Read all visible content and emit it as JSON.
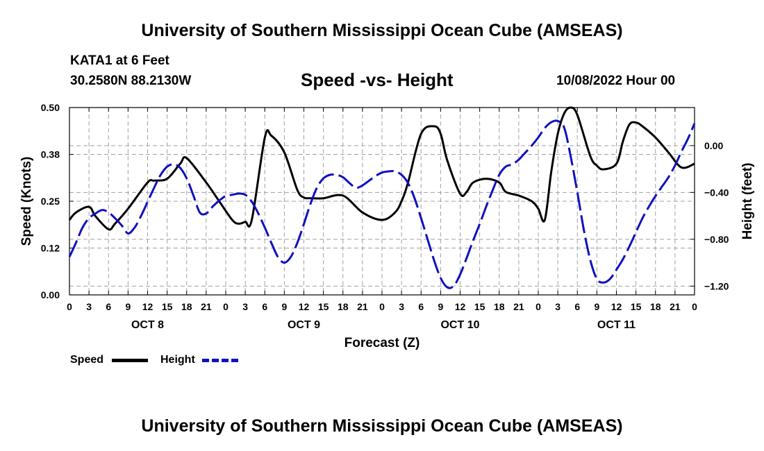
{
  "header": {
    "title_top": "University of Southern Mississippi Ocean Cube (AMSEAS)",
    "station": "KATA1 at 6 Feet",
    "coords": "30.2580N  88.2130W",
    "plot_title": "Speed -vs- Height",
    "datetime": "10/08/2022 Hour 00",
    "title_bottom": "University of Southern Mississippi Ocean Cube (AMSEAS)"
  },
  "legend": {
    "speed_label": "Speed",
    "height_label": "Height"
  },
  "colors": {
    "speed": "#000000",
    "height": "#1010c0",
    "grid": "#a0a0a0"
  },
  "chart_data": {
    "type": "line",
    "title": "Speed -vs- Height",
    "xlabel": "Forecast (Z)",
    "ylabel_left": "Speed (Knots)",
    "ylabel_right": "Height (feet)",
    "x_unit": "hours from 10/08/2022 00Z",
    "xlim": [
      0,
      96
    ],
    "ylim_left": [
      0,
      0.5
    ],
    "ylim_right": [
      -1.275,
      0.325
    ],
    "grid": true,
    "x_ticks": [
      0,
      3,
      6,
      9,
      12,
      15,
      18,
      21,
      24,
      27,
      30,
      33,
      36,
      39,
      42,
      45,
      48,
      51,
      54,
      57,
      60,
      63,
      66,
      69,
      72,
      75,
      78,
      81,
      84,
      87,
      90,
      93,
      96
    ],
    "x_tick_labels": [
      "0",
      "3",
      "6",
      "9",
      "12",
      "15",
      "18",
      "21",
      "0",
      "3",
      "6",
      "9",
      "12",
      "15",
      "18",
      "21",
      "0",
      "3",
      "6",
      "9",
      "12",
      "15",
      "18",
      "21",
      "0",
      "3",
      "6",
      "9",
      "12",
      "15",
      "18",
      "21",
      "0"
    ],
    "day_labels": [
      {
        "label": "OCT 8",
        "x": 12
      },
      {
        "label": "OCT 9",
        "x": 36
      },
      {
        "label": "OCT 10",
        "x": 60
      },
      {
        "label": "OCT 11",
        "x": 84
      }
    ],
    "left_ticks": [
      {
        "v": 0.0,
        "label": "0.00"
      },
      {
        "v": 0.125,
        "label": "0.12"
      },
      {
        "v": 0.25,
        "label": "0.25"
      },
      {
        "v": 0.375,
        "label": "0.38"
      },
      {
        "v": 0.5,
        "label": "0.50"
      }
    ],
    "right_ticks": [
      {
        "v": -1.2,
        "label": "−1.20"
      },
      {
        "v": -0.8,
        "label": "−0.80"
      },
      {
        "v": -0.4,
        "label": "−0.40"
      },
      {
        "v": 0.0,
        "label": "0.00"
      }
    ],
    "series": [
      {
        "name": "Speed",
        "axis": "left",
        "style": "solid",
        "x": [
          0,
          1,
          3,
          4,
          6,
          7,
          9,
          12,
          13,
          15,
          17,
          18,
          21,
          23,
          25,
          26,
          27,
          28,
          30,
          31,
          33,
          35,
          36,
          37,
          39,
          42,
          45,
          48,
          50,
          51,
          52,
          54,
          56,
          57,
          58,
          60,
          61,
          62,
          64,
          66,
          67,
          69,
          71,
          72,
          73,
          74,
          75,
          76,
          77,
          78,
          80,
          81,
          82,
          84,
          85,
          86,
          87,
          88,
          90,
          92,
          94,
          96
        ],
        "values": [
          0.2,
          0.22,
          0.235,
          0.21,
          0.175,
          0.19,
          0.23,
          0.3,
          0.305,
          0.31,
          0.35,
          0.365,
          0.3,
          0.25,
          0.2,
          0.19,
          0.195,
          0.2,
          0.42,
          0.425,
          0.38,
          0.28,
          0.26,
          0.258,
          0.258,
          0.265,
          0.22,
          0.2,
          0.22,
          0.25,
          0.3,
          0.43,
          0.45,
          0.43,
          0.36,
          0.27,
          0.275,
          0.3,
          0.31,
          0.3,
          0.275,
          0.265,
          0.25,
          0.23,
          0.2,
          0.33,
          0.43,
          0.485,
          0.5,
          0.48,
          0.37,
          0.345,
          0.335,
          0.35,
          0.41,
          0.455,
          0.46,
          0.45,
          0.42,
          0.38,
          0.34,
          0.35
        ]
      },
      {
        "name": "Height",
        "axis": "right",
        "style": "dashed",
        "x": [
          0,
          1,
          2,
          3,
          4,
          5,
          6,
          7,
          8,
          9,
          10,
          11,
          12,
          13,
          14,
          15,
          16,
          17,
          18,
          19,
          20,
          21,
          22,
          23,
          24,
          25,
          26,
          27,
          28,
          29,
          30,
          31,
          32,
          33,
          34,
          35,
          36,
          37,
          38,
          39,
          40,
          41,
          42,
          43,
          44,
          45,
          46,
          47,
          48,
          49,
          50,
          51,
          52,
          53,
          54,
          55,
          56,
          57,
          58,
          59,
          60,
          61,
          62,
          63,
          64,
          65,
          66,
          67,
          68,
          69,
          70,
          71,
          72,
          73,
          74,
          75,
          76,
          77,
          78,
          79,
          80,
          81,
          82,
          83,
          84,
          85,
          86,
          87,
          88,
          89,
          90,
          91,
          92,
          93,
          94,
          95,
          96
        ],
        "values": [
          -0.95,
          -0.83,
          -0.7,
          -0.62,
          -0.58,
          -0.55,
          -0.57,
          -0.62,
          -0.68,
          -0.75,
          -0.7,
          -0.6,
          -0.48,
          -0.36,
          -0.25,
          -0.18,
          -0.16,
          -0.19,
          -0.28,
          -0.42,
          -0.57,
          -0.58,
          -0.52,
          -0.47,
          -0.43,
          -0.42,
          -0.41,
          -0.42,
          -0.48,
          -0.58,
          -0.7,
          -0.83,
          -0.95,
          -1.0,
          -0.95,
          -0.83,
          -0.67,
          -0.5,
          -0.36,
          -0.28,
          -0.25,
          -0.25,
          -0.27,
          -0.32,
          -0.36,
          -0.34,
          -0.3,
          -0.26,
          -0.23,
          -0.22,
          -0.22,
          -0.25,
          -0.32,
          -0.45,
          -0.62,
          -0.8,
          -0.98,
          -1.13,
          -1.21,
          -1.2,
          -1.1,
          -0.96,
          -0.81,
          -0.67,
          -0.52,
          -0.38,
          -0.25,
          -0.18,
          -0.16,
          -0.12,
          -0.06,
          0.0,
          0.07,
          0.15,
          0.2,
          0.21,
          0.15,
          -0.1,
          -0.4,
          -0.72,
          -0.98,
          -1.14,
          -1.17,
          -1.14,
          -1.06,
          -0.97,
          -0.86,
          -0.74,
          -0.62,
          -0.52,
          -0.43,
          -0.35,
          -0.27,
          -0.17,
          -0.05,
          0.06,
          0.19
        ]
      }
    ]
  }
}
